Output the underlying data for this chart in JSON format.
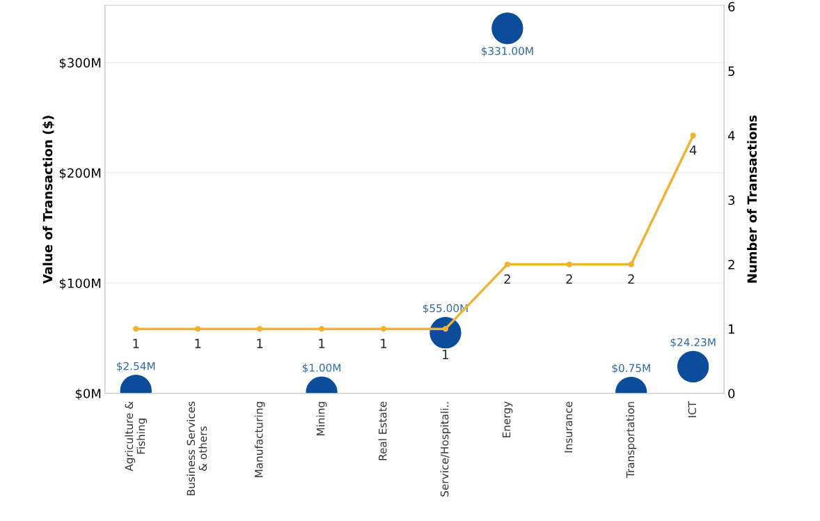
{
  "chart_data": {
    "type": "scatter",
    "categories": [
      "Agriculture &\nFishing",
      "Business Services\n& others",
      "Manufacturing",
      "Mining",
      "Real Estate",
      "Service/Hospitali..",
      "Energy",
      "Insurance",
      "Transportation",
      "ICT"
    ],
    "ylabel": "Value of Transaction ($)",
    "y2label": "Number of Transactions",
    "ylim": [
      0,
      352
    ],
    "yticks": [
      {
        "value": 0,
        "label": "$0M"
      },
      {
        "value": 100,
        "label": "$100M"
      },
      {
        "value": 200,
        "label": "$200M"
      },
      {
        "value": 300,
        "label": "$300M"
      }
    ],
    "y2lim": [
      0,
      6.02
    ],
    "y2ticks": [
      0,
      1,
      2,
      3,
      4,
      5,
      6
    ],
    "grid": "y",
    "legend": false,
    "marker": "circle",
    "series": [
      {
        "type": "line",
        "axis": "y2",
        "color": "#f0b232",
        "values": [
          1,
          1,
          1,
          1,
          1,
          1,
          2,
          2,
          2,
          4
        ],
        "data_labels": true
      },
      {
        "axis": "y",
        "color": "#0b4d9b",
        "values": [
          2.54,
          null,
          null,
          1.0,
          null,
          55.0,
          331.0,
          null,
          0.75,
          24.23
        ],
        "value_labels": [
          "$2.54M",
          null,
          null,
          "$1.00M",
          null,
          "$55.00M",
          "$331.00M",
          null,
          "$0.75M",
          "$24.23M"
        ]
      }
    ]
  }
}
